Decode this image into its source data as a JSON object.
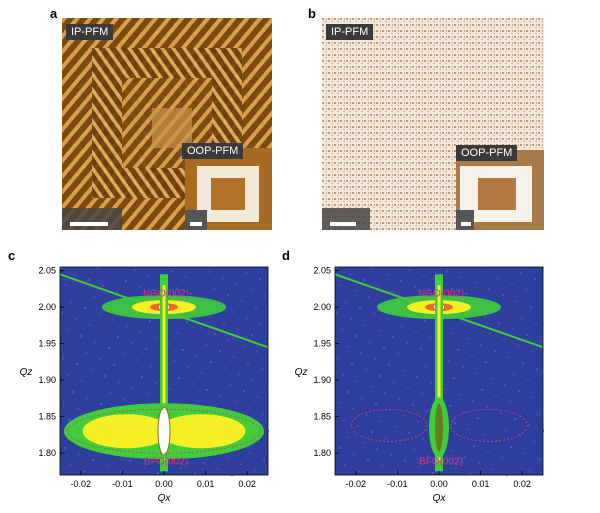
{
  "panels": {
    "a": {
      "letter": "a",
      "main_label": "IP-PFM",
      "inset_label": "OOP-PFM"
    },
    "b": {
      "letter": "b",
      "main_label": "IP-PFM",
      "inset_label": "OOP-PFM"
    },
    "c": {
      "letter": "c",
      "peak_top": "NGO(002)",
      "peak_bottom": "BFO(002)"
    },
    "d": {
      "letter": "d",
      "peak_top": "NGO(002)",
      "peak_bottom": "BFO(002)"
    }
  },
  "chart_data": [
    {
      "type": "heatmap",
      "panel": "c",
      "xlabel": "Qx",
      "ylabel": "Qz",
      "xlim": [
        -0.025,
        0.025
      ],
      "ylim": [
        1.77,
        2.055
      ],
      "x_ticks": [
        "-0.02",
        "-0.01",
        "0.00",
        "0.01",
        "0.02"
      ],
      "y_ticks": [
        "1.80",
        "1.85",
        "1.90",
        "1.95",
        "2.00",
        "2.05"
      ],
      "annotations": [
        "NGO(002)",
        "BFO(002)"
      ]
    },
    {
      "type": "heatmap",
      "panel": "d",
      "xlabel": "Qx",
      "ylabel": "Qz",
      "xlim": [
        -0.025,
        0.025
      ],
      "ylim": [
        1.77,
        2.055
      ],
      "x_ticks": [
        "-0.02",
        "-0.01",
        "0.00",
        "0.01",
        "0.02"
      ],
      "y_ticks": [
        "1.80",
        "1.85",
        "1.90",
        "1.95",
        "2.00",
        "2.05"
      ],
      "annotations": [
        "NGO(002)",
        "BFO(002)"
      ]
    }
  ],
  "colors": {
    "rsm_background": "#2f3f9e",
    "rsm_green": "#3fce3a",
    "rsm_yellow": "#f7f024",
    "peak_label": "#e0307a",
    "pfm_brown": "#8a5a1e"
  }
}
